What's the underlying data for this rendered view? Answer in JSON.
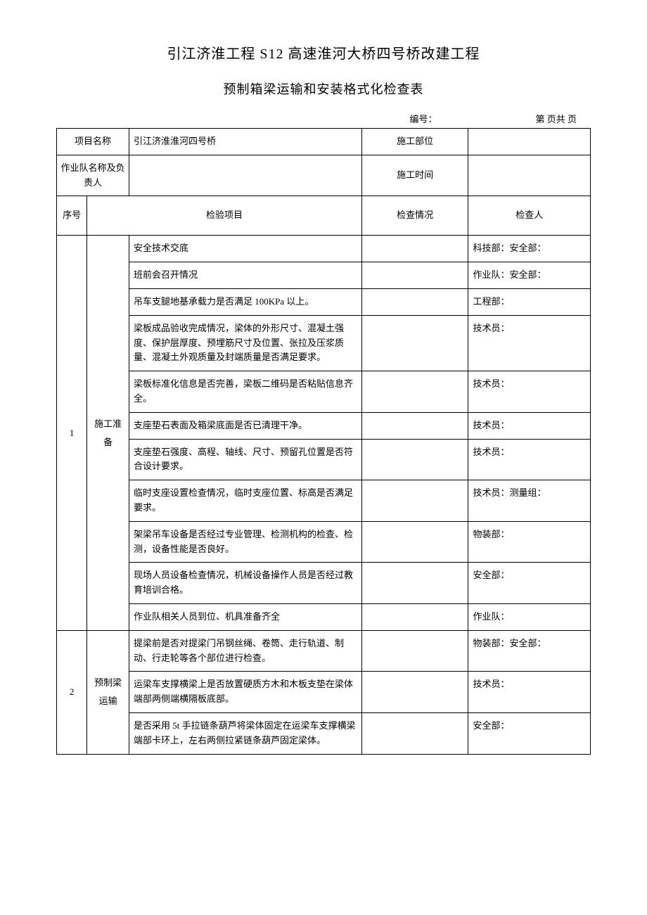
{
  "title_main": "引江济淮工程 S12 高速淮河大桥四号桥改建工程",
  "title_sub": "预制箱梁运输和安装格式化检查表",
  "meta": {
    "code_label": "编号：",
    "page_label": "第 页共 页"
  },
  "header_rows": {
    "project_name_label": "项目名称",
    "project_name_value": "引江济淮淮河四号桥",
    "construction_site_label": "施工部位",
    "construction_site_value": "",
    "team_label": "作业队名称及负责人",
    "team_value": "",
    "construction_time_label": "施工时间",
    "construction_time_value": ""
  },
  "columns": {
    "seq": "序号",
    "inspection_item": "检验项目",
    "check_situation": "检查情况",
    "inspector": "检查人"
  },
  "sections": [
    {
      "seq": "1",
      "category": "施工准备",
      "rows": [
        {
          "item": "安全技术交底",
          "inspector": "科技部：安全部："
        },
        {
          "item": "班前会召开情况",
          "inspector": "作业队：安全部："
        },
        {
          "item": "吊车支腿地基承载力是否满足 100KPa 以上。",
          "inspector": "工程部："
        },
        {
          "item": "梁板成品验收完成情况，梁体的外形尺寸、混凝土强度、保护层厚度、预埋筋尺寸及位置、张拉及压浆质量、混凝土外观质量及封端质量是否满足要求。",
          "inspector": "技术员："
        },
        {
          "item": "梁板标准化信息是否完善，梁板二维码是否粘贴信息齐全。",
          "inspector": "技术员："
        },
        {
          "item": "支座垫石表面及箱梁底面是否已清理干净。",
          "inspector": "技术员："
        },
        {
          "item": "支座垫石强度、高程、轴线、尺寸、预留孔位置是否符合设计要求。",
          "inspector": "技术员："
        },
        {
          "item": "临时支座设置检查情况，临时支座位置、标高是否满足要求。",
          "inspector": "技术员：测量组："
        },
        {
          "item": "架梁吊车设备是否经过专业管理、检测机构的检查、检测，设备性能是否良好。",
          "inspector": "物装部："
        },
        {
          "item": "现场人员设备检查情况，机械设备操作人员是否经过教育培训合格。",
          "inspector": "安全部："
        },
        {
          "item": "作业队相关人员到位、机具准备齐全",
          "inspector": "作业队："
        }
      ]
    },
    {
      "seq": "2",
      "category": "预制梁运输",
      "rows": [
        {
          "item": "提梁前是否对提梁门吊钢丝绳、卷筒、走行轨道、制动、行走轮等各个部位进行检查。",
          "inspector": "物装部：安全部："
        },
        {
          "item": "运梁车支撑横梁上是否放置硬质方木和木板支垫在梁体端部两侧端横隔板底部。",
          "inspector": "技术员："
        },
        {
          "item": "是否采用 5t 手拉链条葫芦将梁体固定在运梁车支撑横梁端部卡环上，左右两侧拉紧链条葫芦固定梁体。",
          "inspector": "安全部："
        }
      ]
    }
  ],
  "style": {
    "background_color": "#ffffff",
    "border_color": "#000000",
    "text_color": "#000000",
    "title_fontsize": 20,
    "subtitle_fontsize": 18,
    "body_fontsize": 13
  }
}
